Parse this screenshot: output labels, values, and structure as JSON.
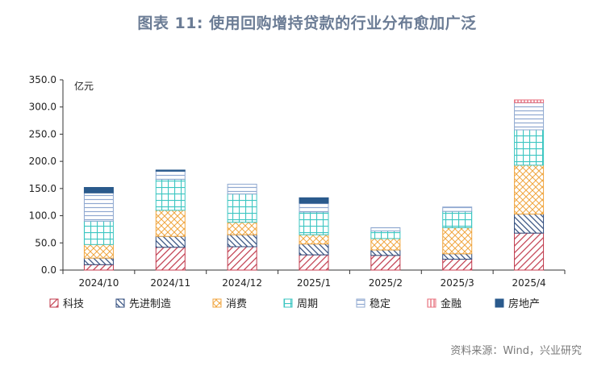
{
  "title": "图表 11: 使用回购增持贷款的行业分布愈加广泛",
  "source": "资料来源：Wind，兴业研究",
  "colors": {
    "科技": "#c0394b",
    "先进制造": "#2f4b7c",
    "消费": "#f0a640",
    "周期": "#3cc6c2",
    "稳定": "#8fa8d0",
    "金融": "#e8707e",
    "房地产": "#2a5a8c"
  },
  "chart_data": {
    "type": "bar",
    "stacked": true,
    "ylabel": "亿元",
    "ylim": [
      0,
      350
    ],
    "yticks": [
      "0.0",
      "50.0",
      "100.0",
      "150.0",
      "200.0",
      "250.0",
      "300.0",
      "350.0"
    ],
    "categories": [
      "2024/10",
      "2024/11",
      "2024/12",
      "2025/1",
      "2025/2",
      "2025/3",
      "2025/4"
    ],
    "series": [
      {
        "name": "科技",
        "values": [
          10,
          42,
          43,
          28,
          27,
          20,
          68
        ]
      },
      {
        "name": "先进制造",
        "values": [
          12,
          20,
          22,
          20,
          10,
          10,
          35
        ]
      },
      {
        "name": "消费",
        "values": [
          25,
          48,
          23,
          17,
          21,
          48,
          90
        ]
      },
      {
        "name": "周期",
        "values": [
          43,
          57,
          52,
          42,
          14,
          30,
          65
        ]
      },
      {
        "name": "稳定",
        "values": [
          52,
          15,
          18,
          16,
          6,
          8,
          50
        ]
      },
      {
        "name": "金融",
        "values": [
          0,
          0,
          0,
          0,
          0,
          0,
          5
        ]
      },
      {
        "name": "房地产",
        "values": [
          10,
          2,
          0,
          10,
          0,
          0,
          0
        ]
      }
    ],
    "grid": false,
    "legend": "bottom"
  }
}
